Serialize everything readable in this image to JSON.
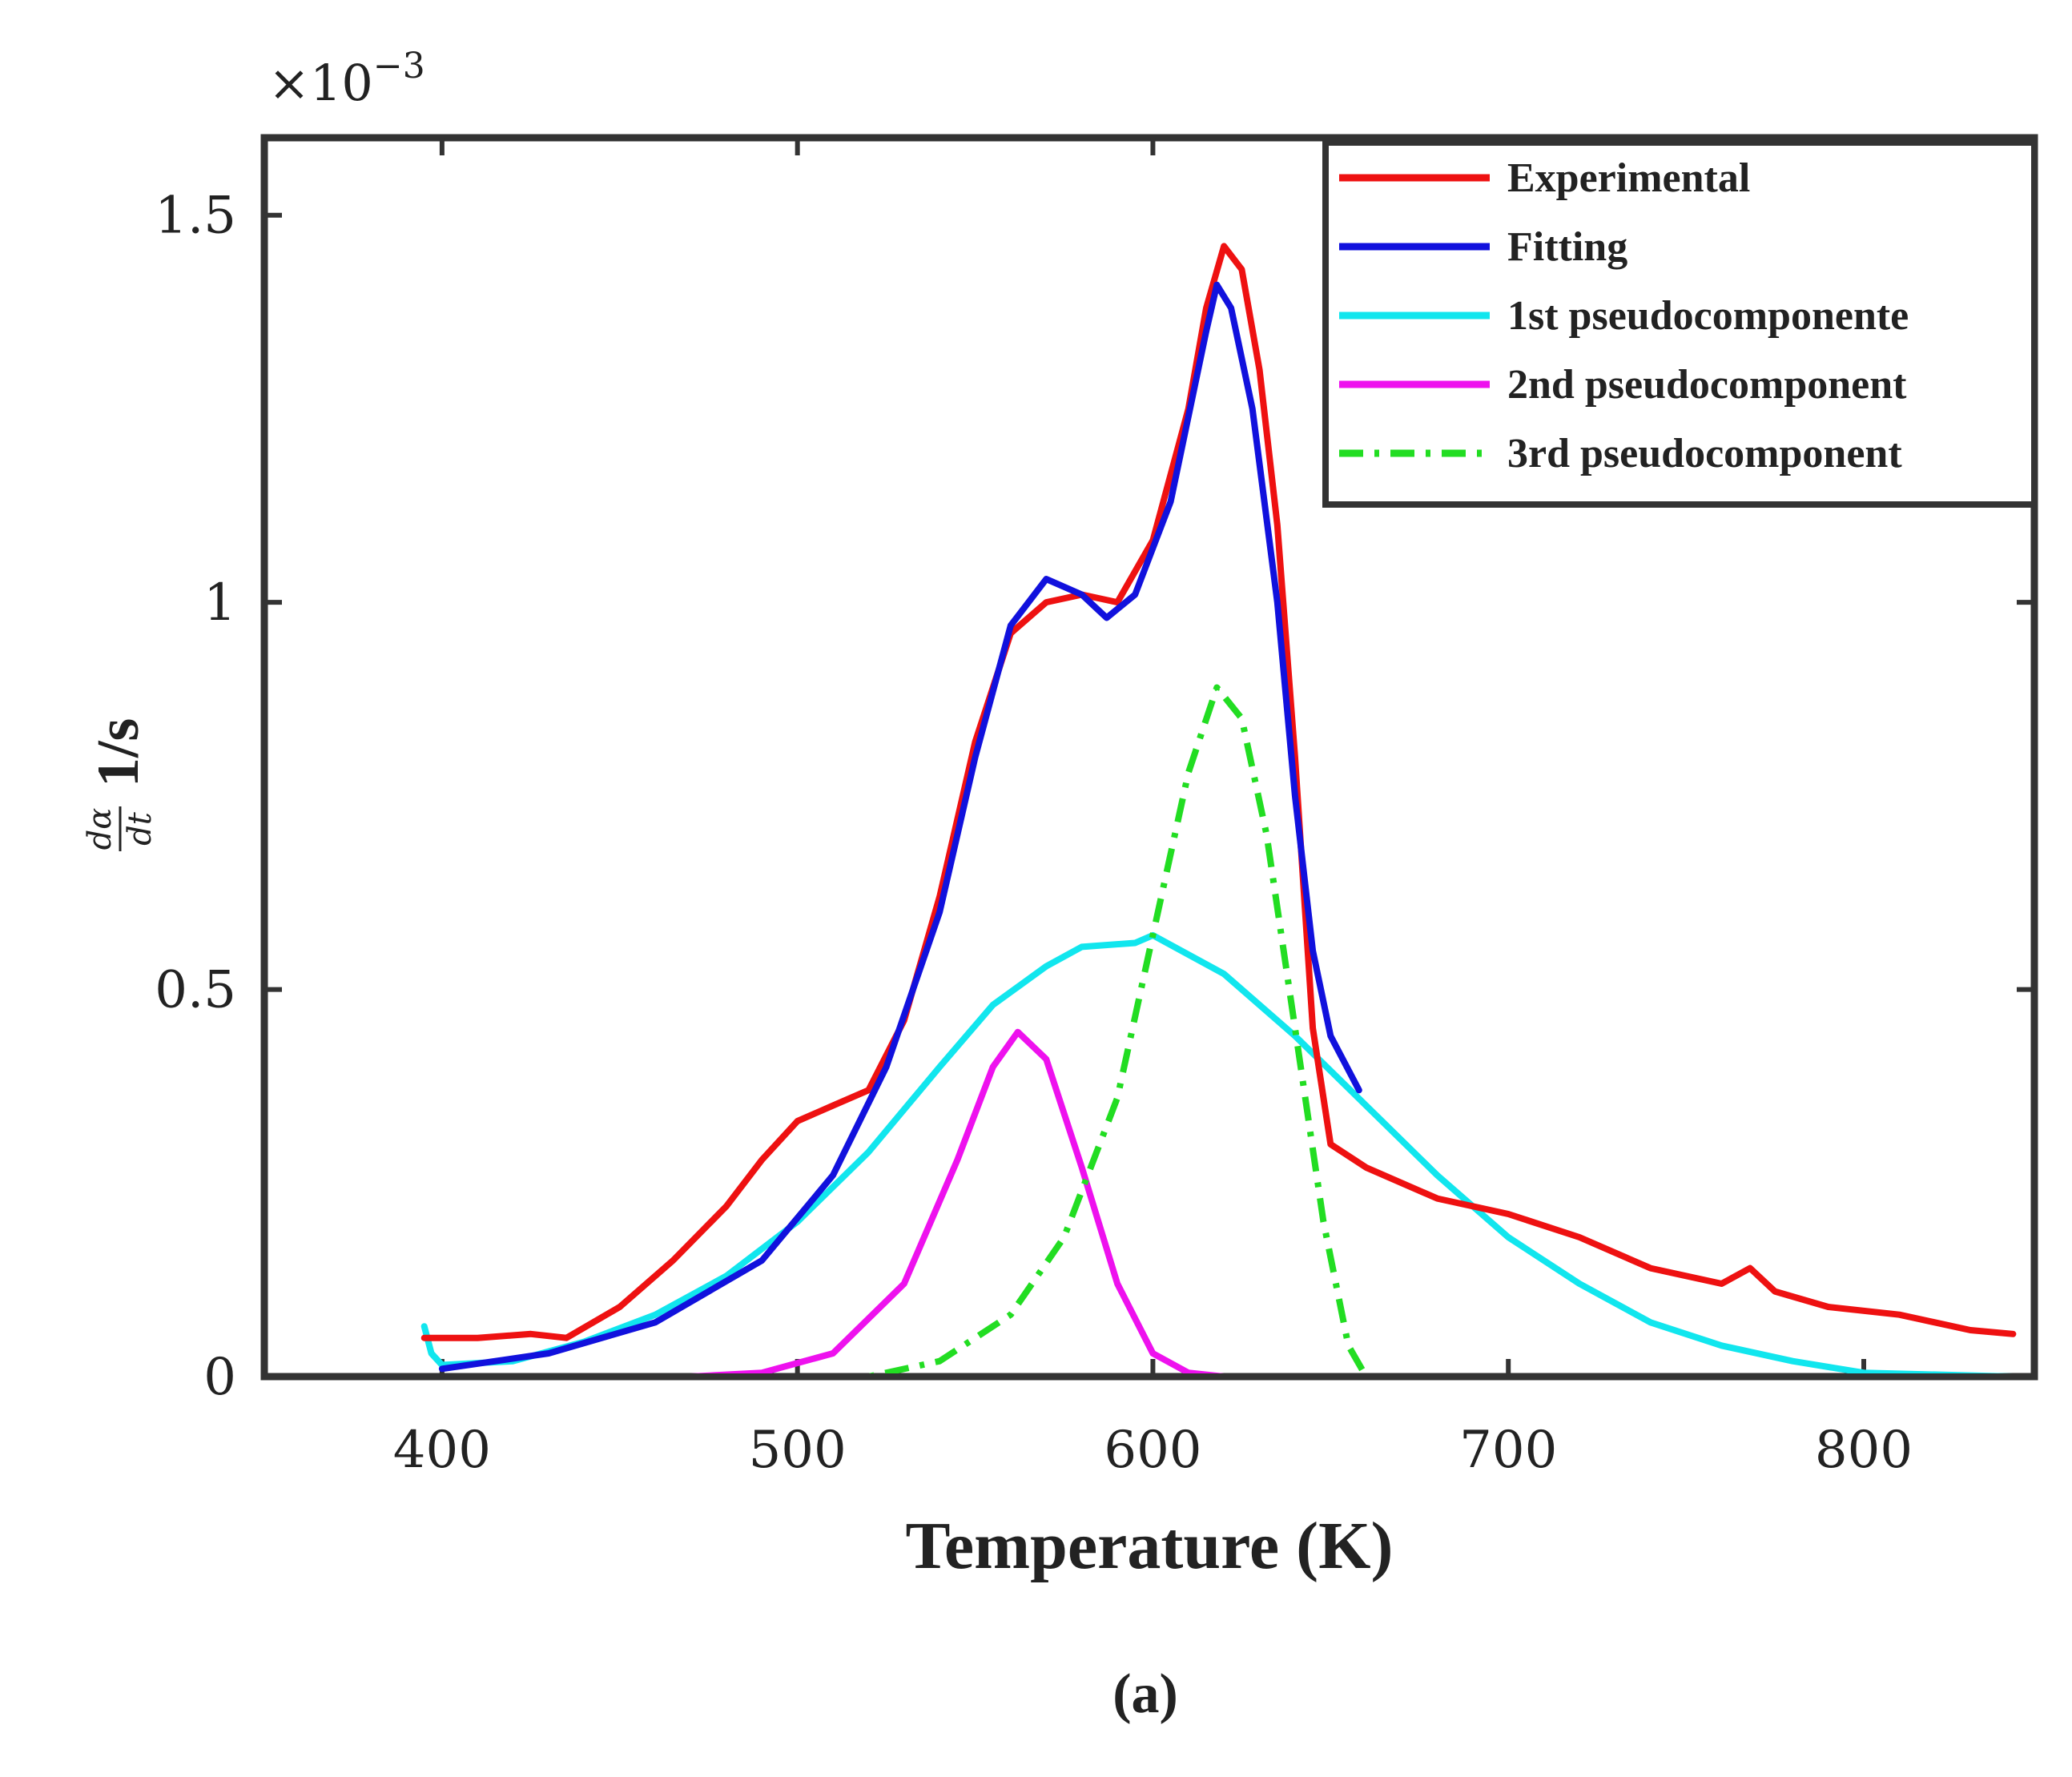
{
  "chart_data": {
    "type": "line",
    "xlabel": "Temperature (K)",
    "ylabel": {
      "numerator": "dα",
      "denominator": "dt",
      "units": "1/s"
    },
    "y_exponent": {
      "base": "×10",
      "power": "−3"
    },
    "caption": "(a)",
    "xlim": [
      350,
      848
    ],
    "ylim": [
      0,
      1.6
    ],
    "x_ticks": [
      400,
      500,
      600,
      700,
      800
    ],
    "x_tick_labels": [
      "400",
      "500",
      "600",
      "700",
      "800"
    ],
    "y_ticks": [
      0,
      0.5,
      1,
      1.5
    ],
    "y_tick_labels": [
      "0",
      "0.5",
      "1",
      "1.5"
    ],
    "legend_position": "top-right",
    "series": [
      {
        "name": "Experimental",
        "color": "#ee1111",
        "dash": "solid",
        "points": [
          [
            395,
            0.05
          ],
          [
            410,
            0.05
          ],
          [
            425,
            0.055
          ],
          [
            435,
            0.05
          ],
          [
            450,
            0.09
          ],
          [
            465,
            0.15
          ],
          [
            480,
            0.22
          ],
          [
            490,
            0.28
          ],
          [
            500,
            0.33
          ],
          [
            510,
            0.35
          ],
          [
            520,
            0.37
          ],
          [
            530,
            0.46
          ],
          [
            540,
            0.62
          ],
          [
            550,
            0.82
          ],
          [
            560,
            0.96
          ],
          [
            570,
            1.0
          ],
          [
            580,
            1.01
          ],
          [
            590,
            1.0
          ],
          [
            600,
            1.08
          ],
          [
            610,
            1.25
          ],
          [
            615,
            1.38
          ],
          [
            620,
            1.46
          ],
          [
            625,
            1.43
          ],
          [
            630,
            1.3
          ],
          [
            635,
            1.1
          ],
          [
            640,
            0.8
          ],
          [
            645,
            0.45
          ],
          [
            650,
            0.3
          ],
          [
            660,
            0.27
          ],
          [
            680,
            0.23
          ],
          [
            700,
            0.21
          ],
          [
            720,
            0.18
          ],
          [
            740,
            0.14
          ],
          [
            760,
            0.12
          ],
          [
            768,
            0.14
          ],
          [
            775,
            0.11
          ],
          [
            790,
            0.09
          ],
          [
            810,
            0.08
          ],
          [
            830,
            0.06
          ],
          [
            842,
            0.055
          ]
        ]
      },
      {
        "name": "Fitting",
        "color": "#1111dd",
        "dash": "solid",
        "points": [
          [
            400,
            0.01
          ],
          [
            430,
            0.03
          ],
          [
            460,
            0.07
          ],
          [
            490,
            0.15
          ],
          [
            510,
            0.26
          ],
          [
            525,
            0.4
          ],
          [
            540,
            0.6
          ],
          [
            550,
            0.8
          ],
          [
            560,
            0.97
          ],
          [
            570,
            1.03
          ],
          [
            580,
            1.01
          ],
          [
            587,
            0.98
          ],
          [
            595,
            1.01
          ],
          [
            605,
            1.13
          ],
          [
            615,
            1.35
          ],
          [
            618,
            1.41
          ],
          [
            622,
            1.38
          ],
          [
            628,
            1.25
          ],
          [
            635,
            1.0
          ],
          [
            640,
            0.75
          ],
          [
            645,
            0.55
          ],
          [
            650,
            0.44
          ],
          [
            658,
            0.37
          ]
        ]
      },
      {
        "name": "1st pseudocomponente",
        "color": "#11e6ee",
        "dash": "solid",
        "points": [
          [
            395,
            0.065
          ],
          [
            397,
            0.03
          ],
          [
            400,
            0.015
          ],
          [
            420,
            0.02
          ],
          [
            440,
            0.045
          ],
          [
            460,
            0.08
          ],
          [
            480,
            0.13
          ],
          [
            500,
            0.2
          ],
          [
            520,
            0.29
          ],
          [
            540,
            0.4
          ],
          [
            555,
            0.48
          ],
          [
            570,
            0.53
          ],
          [
            580,
            0.555
          ],
          [
            595,
            0.56
          ],
          [
            600,
            0.57
          ],
          [
            620,
            0.52
          ],
          [
            640,
            0.44
          ],
          [
            660,
            0.35
          ],
          [
            680,
            0.26
          ],
          [
            700,
            0.18
          ],
          [
            720,
            0.12
          ],
          [
            740,
            0.07
          ],
          [
            760,
            0.04
          ],
          [
            780,
            0.02
          ],
          [
            800,
            0.005
          ],
          [
            842,
            0.0
          ]
        ]
      },
      {
        "name": "2nd pseudocomponent",
        "color": "#ee11ee",
        "dash": "solid",
        "points": [
          [
            395,
            0.0
          ],
          [
            470,
            0.0
          ],
          [
            490,
            0.005
          ],
          [
            510,
            0.03
          ],
          [
            530,
            0.12
          ],
          [
            545,
            0.28
          ],
          [
            555,
            0.4
          ],
          [
            562,
            0.445
          ],
          [
            570,
            0.41
          ],
          [
            580,
            0.27
          ],
          [
            590,
            0.12
          ],
          [
            600,
            0.03
          ],
          [
            610,
            0.005
          ],
          [
            620,
            0.0
          ],
          [
            842,
            0.0
          ]
        ]
      },
      {
        "name": "3rd pseudocomponent",
        "color": "#22dd22",
        "dash": "dashdot",
        "points": [
          [
            395,
            0.0
          ],
          [
            520,
            0.0
          ],
          [
            540,
            0.02
          ],
          [
            560,
            0.08
          ],
          [
            575,
            0.18
          ],
          [
            590,
            0.36
          ],
          [
            600,
            0.57
          ],
          [
            610,
            0.78
          ],
          [
            618,
            0.89
          ],
          [
            625,
            0.85
          ],
          [
            632,
            0.7
          ],
          [
            640,
            0.45
          ],
          [
            648,
            0.2
          ],
          [
            655,
            0.04
          ],
          [
            660,
            0.0
          ],
          [
            842,
            0.0
          ]
        ]
      }
    ]
  }
}
